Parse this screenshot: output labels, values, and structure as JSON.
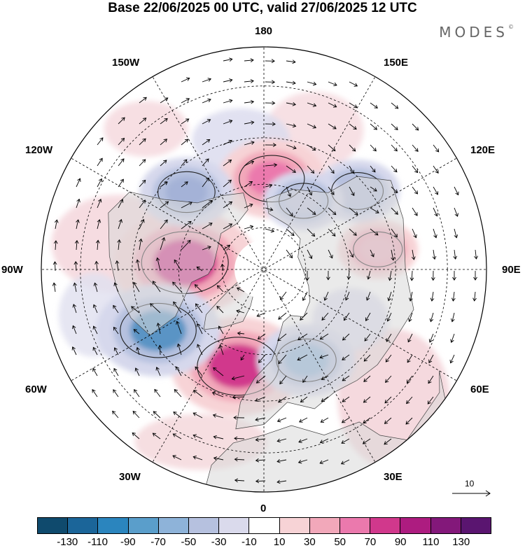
{
  "title": "Base 22/06/2025 00 UTC, valid 27/06/2025 12 UTC",
  "brand": "MODES",
  "brand_mark": "©",
  "map": {
    "projection": "north polar stereographic",
    "longitude_labels": {
      "top": "180",
      "top_left": "150W",
      "top_right": "150E",
      "upper_left": "120W",
      "upper_right": "120E",
      "left": "90W",
      "right": "90E",
      "lower_left": "60W",
      "lower_right": "60E",
      "bottom_left": "30W",
      "bottom_right": "30E",
      "bottom": "0"
    },
    "anomaly_centers": [
      {
        "lon": -95,
        "lat": 62,
        "value": 110,
        "color": "#d1388c"
      },
      {
        "lon": -15,
        "lat": 55,
        "value": 100,
        "color": "#d1388c"
      },
      {
        "lon": -60,
        "lat": 48,
        "value": -90,
        "color": "#5a94c5"
      },
      {
        "lon": 175,
        "lat": 58,
        "value": 70,
        "color": "#eb79ad"
      },
      {
        "lon": 25,
        "lat": 55,
        "value": -60,
        "color": "#8fb4d9"
      },
      {
        "lon": -135,
        "lat": 52,
        "value": -55,
        "color": "#a4b2d7"
      },
      {
        "lon": 100,
        "lat": 50,
        "value": 40,
        "color": "#efb4c3"
      },
      {
        "lon": 130,
        "lat": 48,
        "value": -45,
        "color": "#b9c0dd"
      },
      {
        "lon": 150,
        "lat": 62,
        "value": -40,
        "color": "#c0c6e0"
      }
    ]
  },
  "vector_reference": {
    "label": "10"
  },
  "legend": {
    "colors": [
      "#0f4a6d",
      "#1b6599",
      "#2b85be",
      "#5a9ecb",
      "#8eb3d9",
      "#b6c1df",
      "#dadaec",
      "#ffffff",
      "#f7d3d6",
      "#f2a8ba",
      "#eb79ad",
      "#d1388c",
      "#ad1c80",
      "#83187a",
      "#5a1570"
    ],
    "tick_labels": [
      "-130",
      "-110",
      "-90",
      "-70",
      "-50",
      "-30",
      "-10",
      "10",
      "30",
      "50",
      "70",
      "90",
      "110",
      "130"
    ]
  }
}
